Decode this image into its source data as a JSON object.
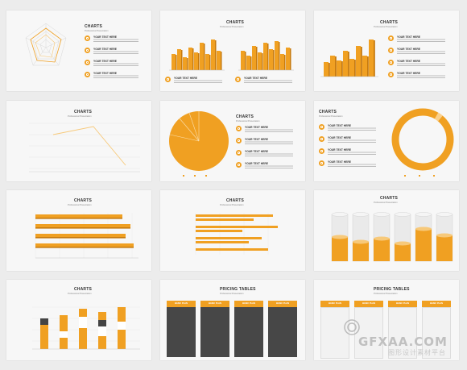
{
  "slides": {
    "chart_title": "CHARTS",
    "chart_subtitle": "Professional Presentation",
    "pricing_title": "PRICING TABLES",
    "pricing_subtitle": "Professional Presentation",
    "bullet_label": "YOUR TEXT HERE",
    "plan_name": "BASIC PLAN"
  },
  "accent_color": "#f0a022",
  "dark_color": "#474747",
  "watermark": {
    "text": "GFXAA.COM",
    "subtext": "图形设计素材平台"
  },
  "icons": [
    "lightbulb-icon",
    "chart-icon",
    "globe-icon",
    "gear-icon"
  ]
}
